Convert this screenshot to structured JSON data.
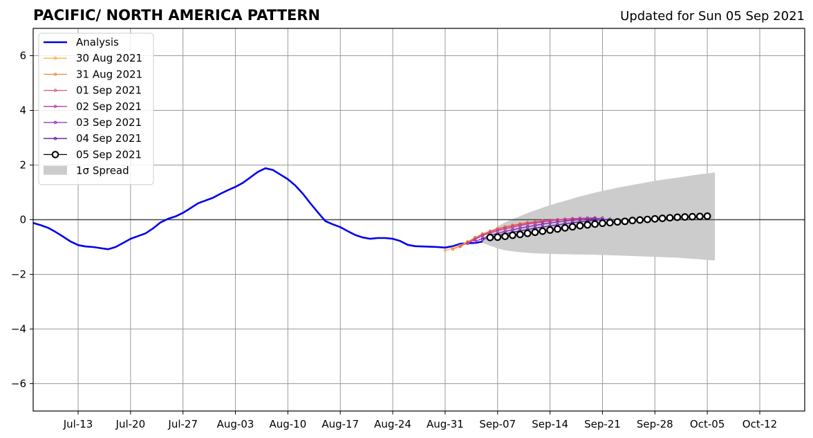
{
  "chart_data": {
    "type": "line",
    "title": "PACIFIC/ NORTH AMERICA PATTERN",
    "subtitle": "Updated for Sun 05 Sep 2021",
    "xlabel": "",
    "ylabel": "",
    "xlim": [
      "2021-07-07",
      "2021-10-18"
    ],
    "ylim": [
      -7,
      7
    ],
    "x_ticks": [
      "Jul-13",
      "Jul-20",
      "Jul-27",
      "Aug-03",
      "Aug-10",
      "Aug-17",
      "Aug-24",
      "Aug-31",
      "Sep-07",
      "Sep-14",
      "Sep-21",
      "Sep-28",
      "Oct-05",
      "Oct-12"
    ],
    "y_ticks": [
      -6,
      -4,
      -2,
      0,
      2,
      4,
      6
    ],
    "grid": true,
    "legend_position": "upper-left",
    "series": [
      {
        "name": "Analysis",
        "color": "#0000ee",
        "start_date": "2021-07-07",
        "values": [
          -0.12,
          -0.2,
          -0.3,
          -0.45,
          -0.62,
          -0.8,
          -0.93,
          -0.98,
          -1.0,
          -1.04,
          -1.08,
          -1.0,
          -0.85,
          -0.7,
          -0.6,
          -0.5,
          -0.32,
          -0.1,
          0.03,
          0.12,
          0.25,
          0.42,
          0.6,
          0.7,
          0.8,
          0.95,
          1.08,
          1.2,
          1.35,
          1.55,
          1.75,
          1.88,
          1.82,
          1.65,
          1.48,
          1.25,
          0.95,
          0.6,
          0.27,
          -0.05,
          -0.17,
          -0.27,
          -0.42,
          -0.56,
          -0.65,
          -0.7,
          -0.67,
          -0.67,
          -0.7,
          -0.78,
          -0.92,
          -0.97,
          -0.98,
          -0.99,
          -1.0,
          -1.02,
          -0.97,
          -0.88,
          -0.86,
          -0.85,
          -0.8
        ]
      },
      {
        "name": "30 Aug 2021",
        "color": "#fbb040",
        "start_date": "2021-08-31",
        "values": [
          -1.12,
          -1.05,
          -0.95,
          -0.8,
          -0.65,
          -0.52,
          -0.42,
          -0.33,
          -0.26,
          -0.2,
          -0.15,
          -0.11,
          -0.08,
          -0.05,
          -0.03,
          -0.01,
          0.0,
          0.01
        ]
      },
      {
        "name": "31 Aug 2021",
        "color": "#f0883a",
        "start_date": "2021-09-01",
        "values": [
          -1.08,
          -0.97,
          -0.82,
          -0.66,
          -0.52,
          -0.42,
          -0.33,
          -0.26,
          -0.2,
          -0.15,
          -0.1,
          -0.07,
          -0.04,
          -0.02,
          0.0,
          0.01,
          0.02,
          0.03
        ]
      },
      {
        "name": "01 Sep 2021",
        "color": "#e05472",
        "start_date": "2021-09-02",
        "values": [
          -0.98,
          -0.84,
          -0.69,
          -0.55,
          -0.44,
          -0.35,
          -0.28,
          -0.22,
          -0.17,
          -0.12,
          -0.08,
          -0.05,
          -0.02,
          0.0,
          0.02,
          0.04,
          0.05,
          0.06
        ]
      },
      {
        "name": "02 Sep 2021",
        "color": "#bb3a9a",
        "start_date": "2021-09-03",
        "values": [
          -0.87,
          -0.72,
          -0.58,
          -0.48,
          -0.4,
          -0.33,
          -0.27,
          -0.21,
          -0.16,
          -0.12,
          -0.08,
          -0.04,
          -0.01,
          0.01,
          0.03,
          0.05,
          0.06,
          0.07
        ]
      },
      {
        "name": "03 Sep 2021",
        "color": "#8b26b0",
        "start_date": "2021-09-04",
        "values": [
          -0.8,
          -0.68,
          -0.58,
          -0.5,
          -0.43,
          -0.37,
          -0.31,
          -0.26,
          -0.21,
          -0.16,
          -0.12,
          -0.08,
          -0.05,
          -0.02,
          0.0,
          0.02,
          0.04,
          0.06
        ]
      },
      {
        "name": "04 Sep 2021",
        "color": "#5a1a9a",
        "start_date": "2021-09-05",
        "values": [
          -0.72,
          -0.65,
          -0.58,
          -0.52,
          -0.46,
          -0.41,
          -0.36,
          -0.31,
          -0.27,
          -0.23,
          -0.19,
          -0.15,
          -0.11,
          -0.08,
          -0.05,
          -0.02,
          0.0,
          0.02
        ]
      },
      {
        "name": "05 Sep 2021",
        "color": "#000000",
        "start_date": "2021-09-06",
        "values": [
          -0.65,
          -0.64,
          -0.61,
          -0.57,
          -0.54,
          -0.5,
          -0.46,
          -0.42,
          -0.38,
          -0.34,
          -0.3,
          -0.26,
          -0.22,
          -0.19,
          -0.16,
          -0.13,
          -0.11,
          -0.08,
          -0.06,
          -0.03,
          -0.01,
          0.01,
          0.03,
          0.05,
          0.07,
          0.09,
          0.1,
          0.11,
          0.12,
          0.13
        ]
      }
    ],
    "spread": {
      "name": "1σ Spread",
      "color": "#cccccc",
      "start_date": "2021-09-05",
      "upper": [
        -0.75,
        -0.45,
        -0.25,
        -0.1,
        0.02,
        0.13,
        0.24,
        0.34,
        0.44,
        0.53,
        0.61,
        0.69,
        0.77,
        0.85,
        0.92,
        0.99,
        1.05,
        1.11,
        1.17,
        1.22,
        1.27,
        1.32,
        1.37,
        1.42,
        1.46,
        1.5,
        1.54,
        1.58,
        1.62,
        1.66,
        1.69,
        1.73
      ],
      "lower": [
        -0.85,
        -0.95,
        -1.05,
        -1.12,
        -1.16,
        -1.19,
        -1.21,
        -1.23,
        -1.24,
        -1.25,
        -1.26,
        -1.26,
        -1.27,
        -1.27,
        -1.28,
        -1.28,
        -1.29,
        -1.3,
        -1.31,
        -1.32,
        -1.33,
        -1.34,
        -1.35,
        -1.36,
        -1.37,
        -1.38,
        -1.39,
        -1.41,
        -1.43,
        -1.45,
        -1.47,
        -1.49
      ]
    }
  }
}
